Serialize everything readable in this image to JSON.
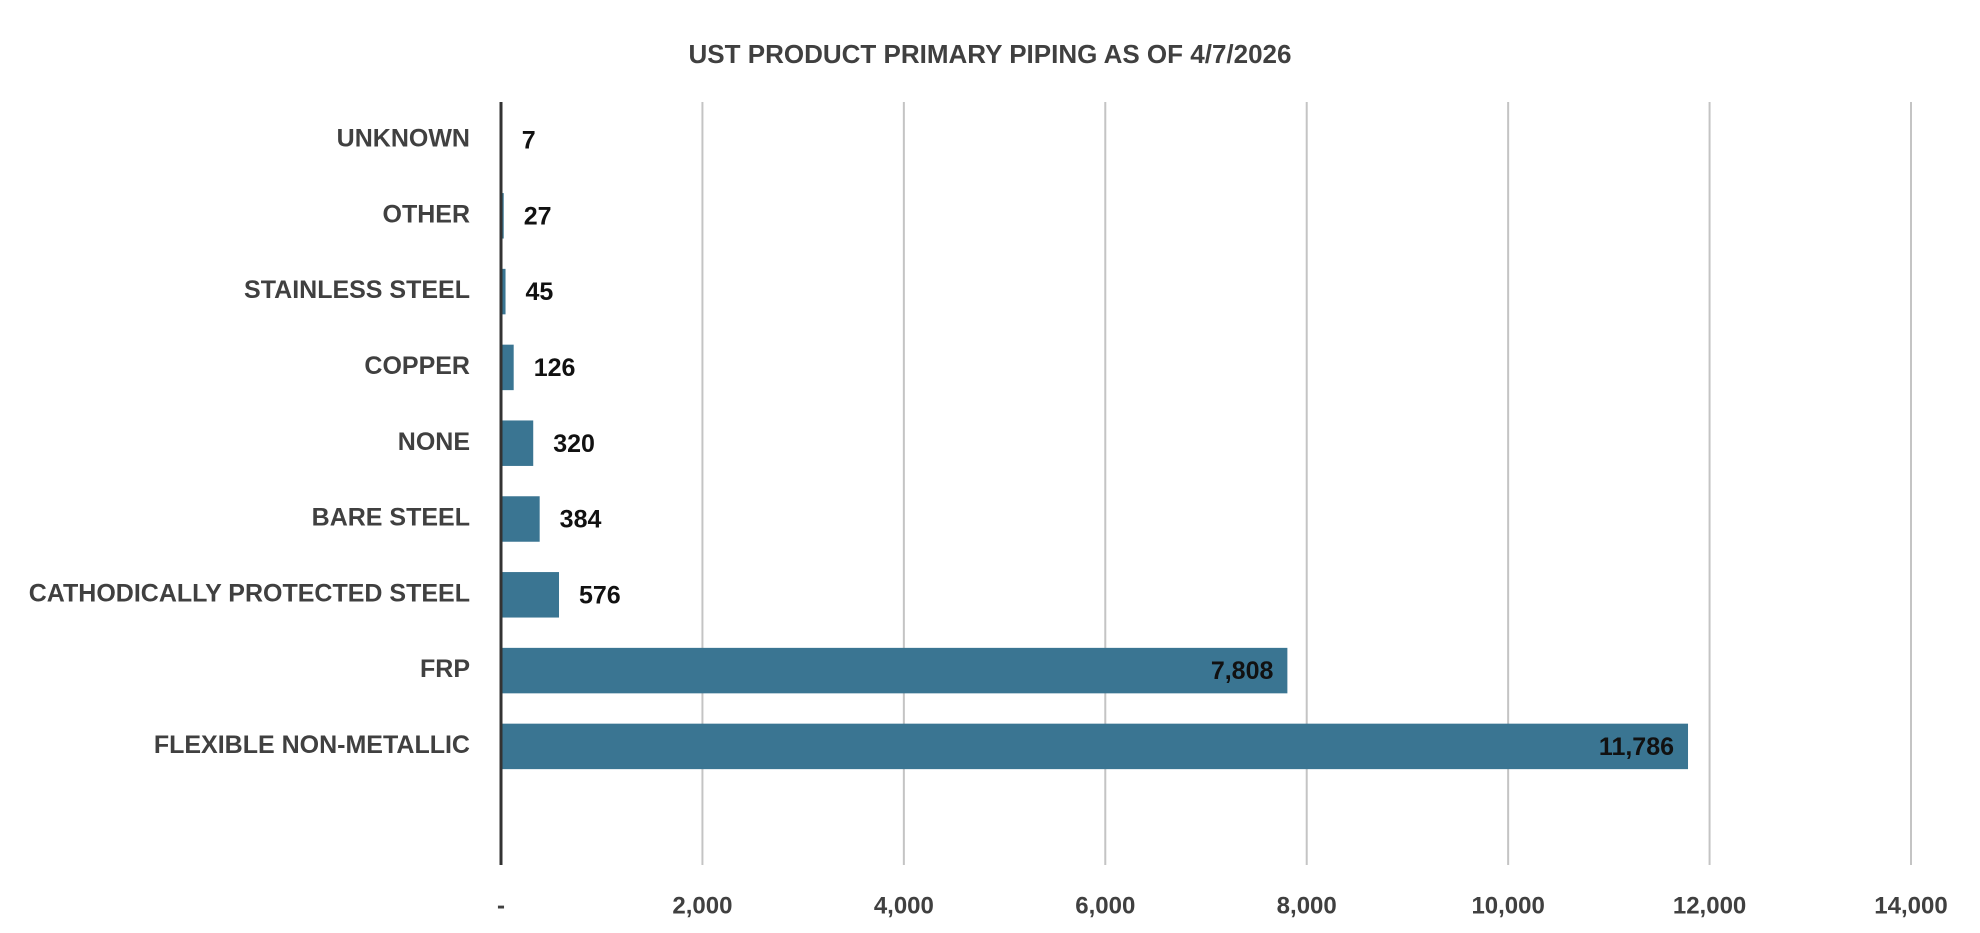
{
  "chart_data": {
    "type": "bar",
    "orientation": "horizontal",
    "title": "UST PRODUCT PRIMARY PIPING AS OF 4/7/2026",
    "categories": [
      "UNKNOWN",
      "OTHER",
      "STAINLESS STEEL",
      "COPPER",
      "NONE",
      "BARE STEEL",
      "CATHODICALLY PROTECTED STEEL",
      "FRP",
      "FLEXIBLE NON-METALLIC"
    ],
    "values": [
      7,
      27,
      45,
      126,
      320,
      384,
      576,
      7808,
      11786
    ],
    "value_labels": [
      "7",
      "27",
      "45",
      "126",
      "320",
      "384",
      "576",
      "7,808",
      "11,786"
    ],
    "color": "#3a7592",
    "xlim": [
      0,
      14000
    ],
    "xticks": [
      {
        "value": 0,
        "label": "-"
      },
      {
        "value": 2000,
        "label": "2,000"
      },
      {
        "value": 4000,
        "label": "4,000"
      },
      {
        "value": 6000,
        "label": "6,000"
      },
      {
        "value": 8000,
        "label": "8,000"
      },
      {
        "value": 10000,
        "label": "10,000"
      },
      {
        "value": 12000,
        "label": "12,000"
      },
      {
        "value": 14000,
        "label": "14,000"
      }
    ],
    "grid": true
  }
}
